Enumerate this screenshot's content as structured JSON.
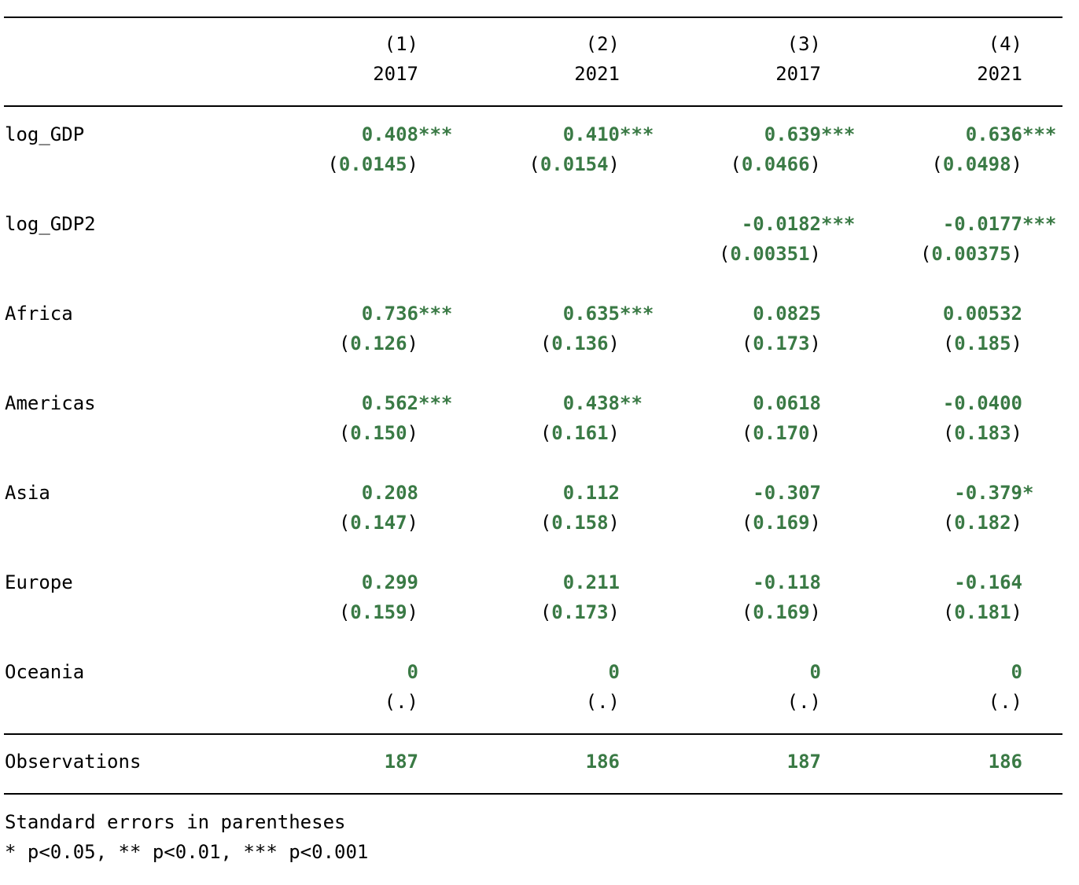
{
  "columns": [
    {
      "number": "(1)",
      "year": "2017"
    },
    {
      "number": "(2)",
      "year": "2021"
    },
    {
      "number": "(3)",
      "year": "2017"
    },
    {
      "number": "(4)",
      "year": "2021"
    }
  ],
  "rows": [
    {
      "label": "log_GDP",
      "coef": [
        {
          "v": "0.408",
          "s": "***"
        },
        {
          "v": "0.410",
          "s": "***"
        },
        {
          "v": "0.639",
          "s": "***"
        },
        {
          "v": "0.636",
          "s": "***"
        }
      ],
      "se": [
        "0.0145",
        "0.0154",
        "0.0466",
        "0.0498"
      ]
    },
    {
      "label": "log_GDP2",
      "coef": [
        {
          "v": "",
          "s": ""
        },
        {
          "v": "",
          "s": ""
        },
        {
          "v": "-0.0182",
          "s": "***"
        },
        {
          "v": "-0.0177",
          "s": "***"
        }
      ],
      "se": [
        "",
        "",
        "0.00351",
        "0.00375"
      ]
    },
    {
      "label": "Africa",
      "coef": [
        {
          "v": "0.736",
          "s": "***"
        },
        {
          "v": "0.635",
          "s": "***"
        },
        {
          "v": "0.0825",
          "s": ""
        },
        {
          "v": "0.00532",
          "s": ""
        }
      ],
      "se": [
        "0.126",
        "0.136",
        "0.173",
        "0.185"
      ]
    },
    {
      "label": "Americas",
      "coef": [
        {
          "v": "0.562",
          "s": "***"
        },
        {
          "v": "0.438",
          "s": "**"
        },
        {
          "v": "0.0618",
          "s": ""
        },
        {
          "v": "-0.0400",
          "s": ""
        }
      ],
      "se": [
        "0.150",
        "0.161",
        "0.170",
        "0.183"
      ]
    },
    {
      "label": "Asia",
      "coef": [
        {
          "v": "0.208",
          "s": ""
        },
        {
          "v": "0.112",
          "s": ""
        },
        {
          "v": "-0.307",
          "s": ""
        },
        {
          "v": "-0.379",
          "s": "*"
        }
      ],
      "se": [
        "0.147",
        "0.158",
        "0.169",
        "0.182"
      ]
    },
    {
      "label": "Europe",
      "coef": [
        {
          "v": "0.299",
          "s": ""
        },
        {
          "v": "0.211",
          "s": ""
        },
        {
          "v": "-0.118",
          "s": ""
        },
        {
          "v": "-0.164",
          "s": ""
        }
      ],
      "se": [
        "0.159",
        "0.173",
        "0.169",
        "0.181"
      ]
    },
    {
      "label": "Oceania",
      "coef": [
        {
          "v": "0",
          "s": ""
        },
        {
          "v": "0",
          "s": ""
        },
        {
          "v": "0",
          "s": ""
        },
        {
          "v": "0",
          "s": ""
        }
      ],
      "se": [
        ".",
        ".",
        ".",
        "."
      ]
    }
  ],
  "observations": {
    "label": "Observations",
    "values": [
      "187",
      "186",
      "187",
      "186"
    ]
  },
  "notes": [
    "Standard errors in parentheses",
    "* p<0.05, ** p<0.01, *** p<0.001"
  ],
  "colors": {
    "value_green": "#3a7a45",
    "text": "#000000",
    "rule": "#000000"
  }
}
